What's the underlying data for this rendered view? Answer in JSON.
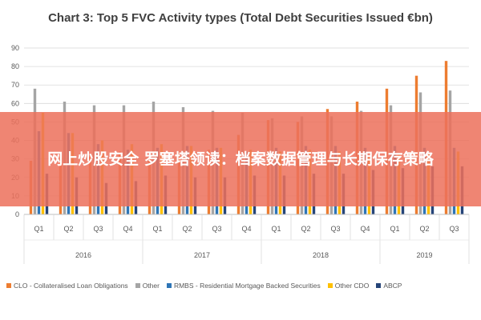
{
  "chart_data": {
    "type": "bar",
    "title": "Chart 3: Top 5 FVC Activity types (Total Debt Securities Issued €bn)",
    "quarters": [
      "Q1",
      "Q2",
      "Q3",
      "Q4",
      "Q1",
      "Q2",
      "Q3",
      "Q4",
      "Q1",
      "Q2",
      "Q3",
      "Q4",
      "Q1",
      "Q2",
      "Q3"
    ],
    "years": [
      {
        "label": "2016",
        "quarters": 4
      },
      {
        "label": "2017",
        "quarters": 4
      },
      {
        "label": "2018",
        "quarters": 4
      },
      {
        "label": "2019",
        "quarters": 3
      }
    ],
    "ylim": [
      0,
      90
    ],
    "yticks": [
      "0",
      "10",
      "20",
      "30",
      "40",
      "50",
      "60",
      "70",
      "80",
      "90"
    ],
    "grid": true,
    "legend_position": "bottom",
    "series": [
      {
        "name": "CLO - Collateralised Loan Obligations",
        "color": "#ed7d31",
        "values": [
          29,
          31,
          31,
          34,
          32,
          34,
          35,
          43,
          51,
          50,
          57,
          61,
          68,
          75,
          83
        ]
      },
      {
        "name": "Other",
        "color": "#a5a5a5",
        "values": [
          68,
          61,
          59,
          59,
          61,
          58,
          56,
          55,
          52,
          53,
          53,
          56,
          59,
          66,
          67
        ]
      },
      {
        "name": "RMBS - Residential Mortgage Backed Securities",
        "color": "#2e75b6",
        "values": [
          45,
          44,
          38,
          35,
          36,
          37,
          36,
          34,
          36,
          37,
          37,
          36,
          37,
          36,
          36
        ]
      },
      {
        "name": "Other CDO",
        "color": "#ffc000",
        "values": [
          55,
          44,
          40,
          38,
          38,
          37,
          36,
          35,
          34,
          35,
          34,
          32,
          33,
          33,
          34
        ]
      },
      {
        "name": "ABCP",
        "color": "#264478",
        "values": [
          22,
          20,
          17,
          18,
          21,
          20,
          20,
          21,
          21,
          22,
          22,
          24,
          25,
          26,
          26
        ]
      }
    ]
  },
  "overlay_text": "网上炒股安全 罗塞塔领读：档案数据管理与长期保存策略"
}
